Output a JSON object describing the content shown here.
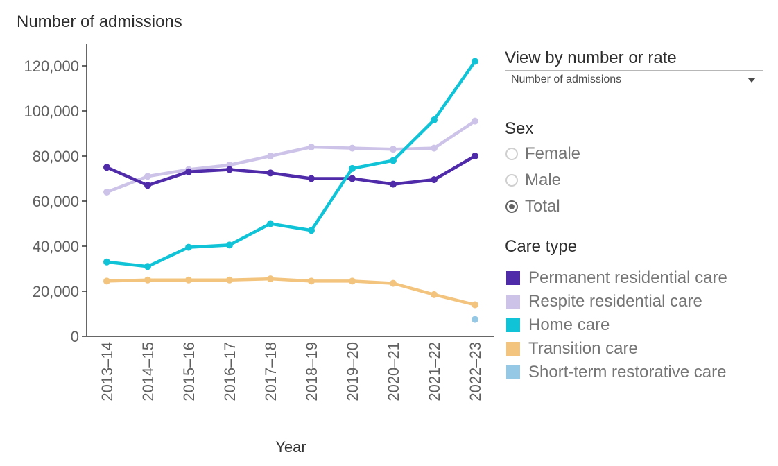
{
  "chart_data": {
    "type": "line",
    "title": "Number of admissions",
    "xlabel": "Year",
    "ylabel": "Number of admissions",
    "categories": [
      "2013–14",
      "2014–15",
      "2015–16",
      "2016–17",
      "2017–18",
      "2018–19",
      "2019–20",
      "2020–21",
      "2021–22",
      "2022–23"
    ],
    "ylim": [
      0,
      130000
    ],
    "yticks": [
      0,
      20000,
      40000,
      60000,
      80000,
      100000,
      120000
    ],
    "ytick_labels": [
      "0",
      "20,000",
      "40,000",
      "60,000",
      "80,000",
      "100,000",
      "120,000"
    ],
    "grid": false,
    "legend_position": "right",
    "legend_title": "Care type",
    "series": [
      {
        "name": "Permanent residential care",
        "color": "#4f2aa9",
        "values": [
          75000,
          67000,
          73000,
          74000,
          72500,
          70000,
          70000,
          67500,
          69500,
          80000
        ]
      },
      {
        "name": "Respite residential care",
        "color": "#cdc3e9",
        "values": [
          64000,
          71000,
          74000,
          76000,
          80000,
          84000,
          83500,
          83000,
          83500,
          95500
        ]
      },
      {
        "name": "Home care",
        "color": "#10c3d6",
        "values": [
          33000,
          31000,
          39500,
          40500,
          50000,
          47000,
          74500,
          78000,
          96000,
          122000
        ]
      },
      {
        "name": "Transition care",
        "color": "#f3c47e",
        "values": [
          24500,
          25000,
          25000,
          25000,
          25500,
          24500,
          24500,
          23500,
          18500,
          14000
        ]
      },
      {
        "name": "Short-term restorative care",
        "color": "#95c8e4",
        "values": [
          null,
          null,
          null,
          null,
          null,
          null,
          null,
          null,
          null,
          7500
        ]
      }
    ]
  },
  "controls": {
    "view_by": {
      "label": "View by number or rate",
      "value": "Number of admissions"
    },
    "sex": {
      "label": "Sex",
      "options": [
        {
          "label": "Female",
          "selected": false
        },
        {
          "label": "Male",
          "selected": false
        },
        {
          "label": "Total",
          "selected": true
        }
      ]
    },
    "care_type_label": "Care type"
  }
}
